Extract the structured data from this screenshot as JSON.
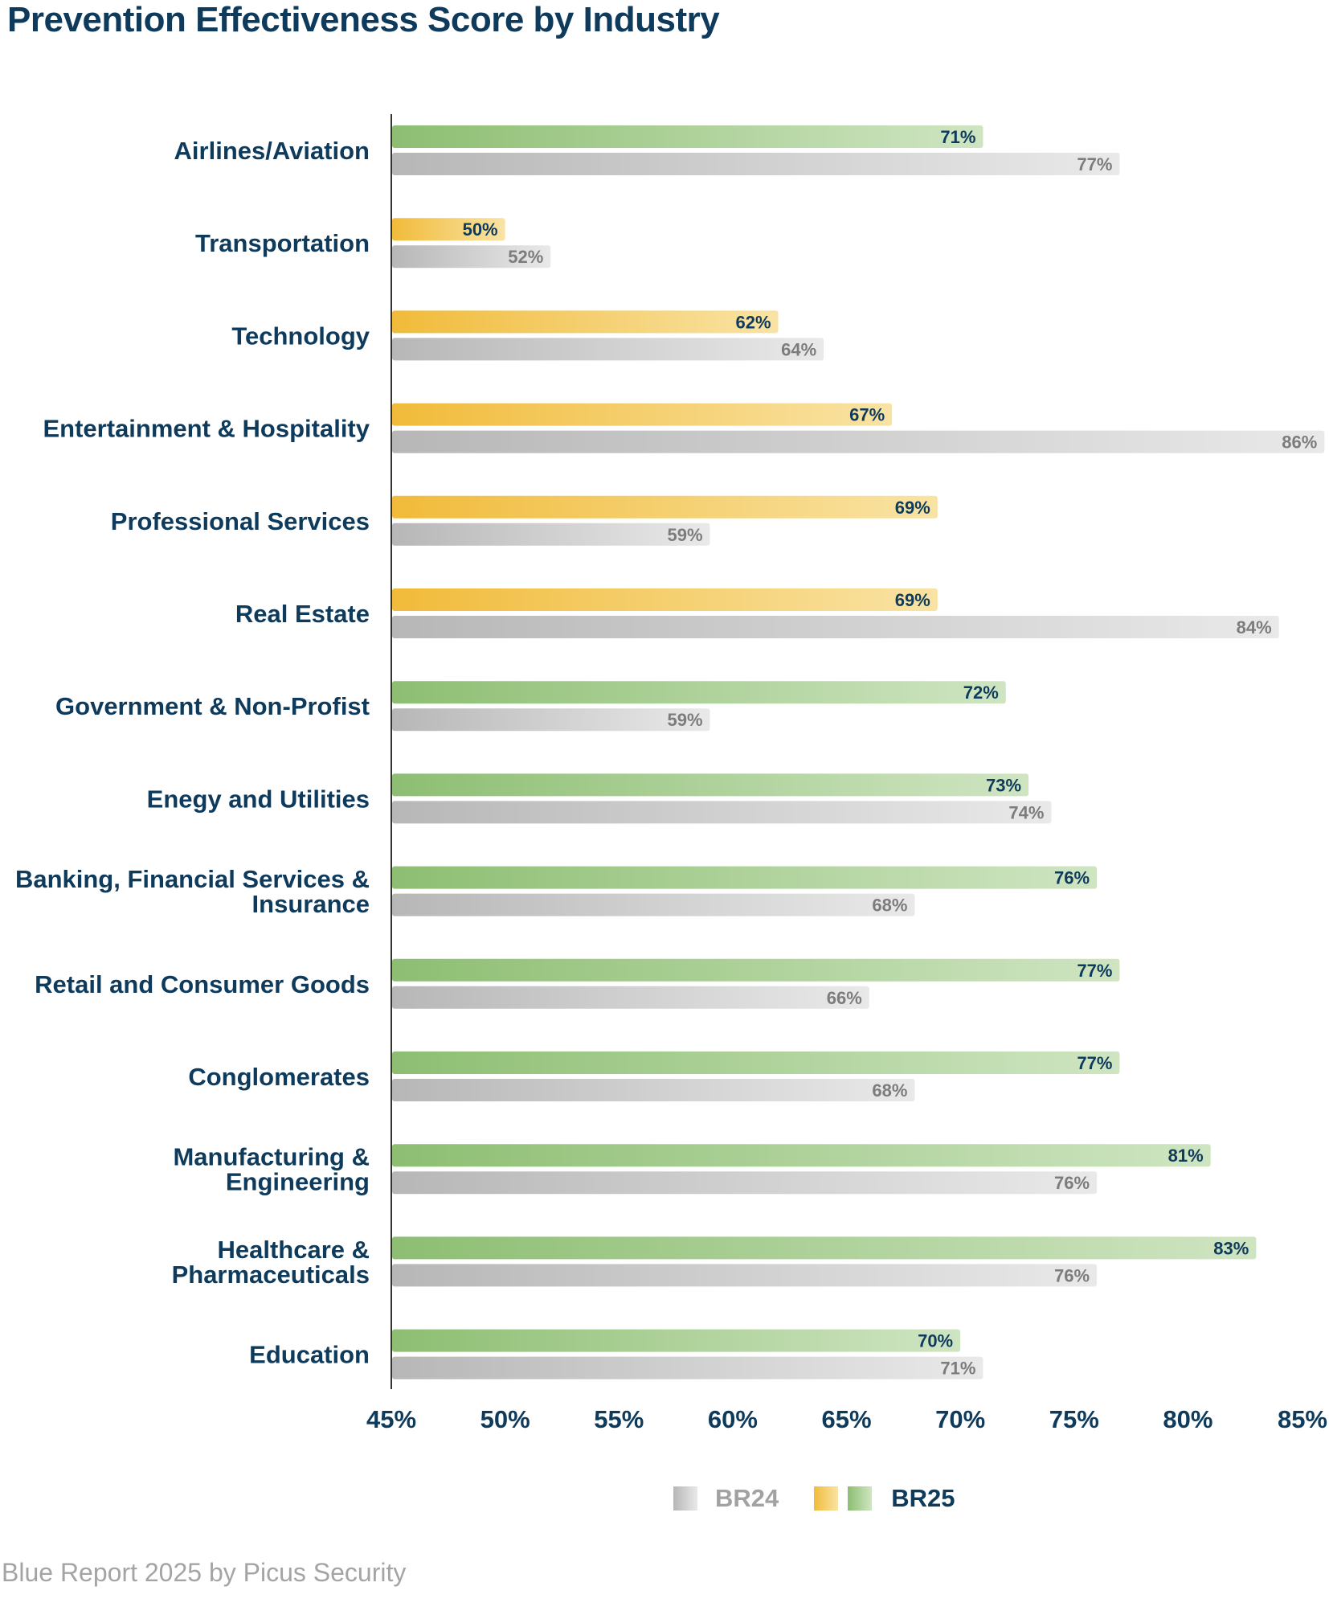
{
  "chart_data": {
    "type": "bar",
    "orientation": "horizontal",
    "title": "Prevention Effectiveness Score by Industry",
    "categories": [
      "Airlines/Aviation",
      "Transportation",
      "Technology",
      "Entertainment & Hospitality",
      "Professional Services",
      "Real Estate",
      "Government & Non-Profist",
      "Enegy and Utilities",
      "Banking, Financial Services & Insurance",
      "Retail and Consumer Goods",
      "Conglomerates",
      "Manufacturing & Engineering",
      "Healthcare & Pharmaceuticals",
      "Education"
    ],
    "category_lines": [
      [
        "Airlines/Aviation"
      ],
      [
        "Transportation"
      ],
      [
        "Technology"
      ],
      [
        "Entertainment & Hospitality"
      ],
      [
        "Professional Services"
      ],
      [
        "Real Estate"
      ],
      [
        "Government & Non-Profist"
      ],
      [
        "Enegy and Utilities"
      ],
      [
        "Banking, Financial Services &",
        "Insurance"
      ],
      [
        "Retail and Consumer Goods"
      ],
      [
        "Conglomerates"
      ],
      [
        "Manufacturing &",
        "Engineering"
      ],
      [
        "Healthcare &",
        "Pharmaceuticals"
      ],
      [
        "Education"
      ]
    ],
    "series": [
      {
        "name": "BR25",
        "values": [
          71,
          50,
          62,
          67,
          69,
          69,
          72,
          73,
          76,
          77,
          77,
          81,
          83,
          70
        ],
        "colors": [
          "green",
          "yellow",
          "yellow",
          "yellow",
          "yellow",
          "yellow",
          "green",
          "green",
          "green",
          "green",
          "green",
          "green",
          "green",
          "green"
        ]
      },
      {
        "name": "BR24",
        "values": [
          77,
          52,
          64,
          86,
          59,
          84,
          59,
          74,
          68,
          66,
          68,
          76,
          76,
          71
        ],
        "colors": [
          "gray",
          "gray",
          "gray",
          "gray",
          "gray",
          "gray",
          "gray",
          "gray",
          "gray",
          "gray",
          "gray",
          "gray",
          "gray",
          "gray"
        ]
      }
    ],
    "xlim": [
      45,
      85
    ],
    "xticks": [
      45,
      50,
      55,
      60,
      65,
      70,
      75,
      80,
      85
    ],
    "tick_suffix": "%",
    "value_suffix": "%",
    "xlabel": "",
    "ylabel": "",
    "grid": false,
    "legend": {
      "position": "bottom",
      "entries": [
        {
          "label": "BR24",
          "colors": [
            "gray"
          ]
        },
        {
          "label": "BR25",
          "colors": [
            "yellow",
            "green"
          ]
        }
      ]
    }
  },
  "palette": {
    "green_start": "#8dbe72",
    "green_end": "#cfe5c2",
    "yellow_start": "#f1bb3a",
    "yellow_end": "#f9e3a4",
    "gray_start": "#b7b7b7",
    "gray_end": "#e9e9e9",
    "navy": "#0e3a5c",
    "value_gray": "#7c7c7c",
    "axis": "#333333"
  },
  "footer": "Blue Report 2025 by Picus Security"
}
